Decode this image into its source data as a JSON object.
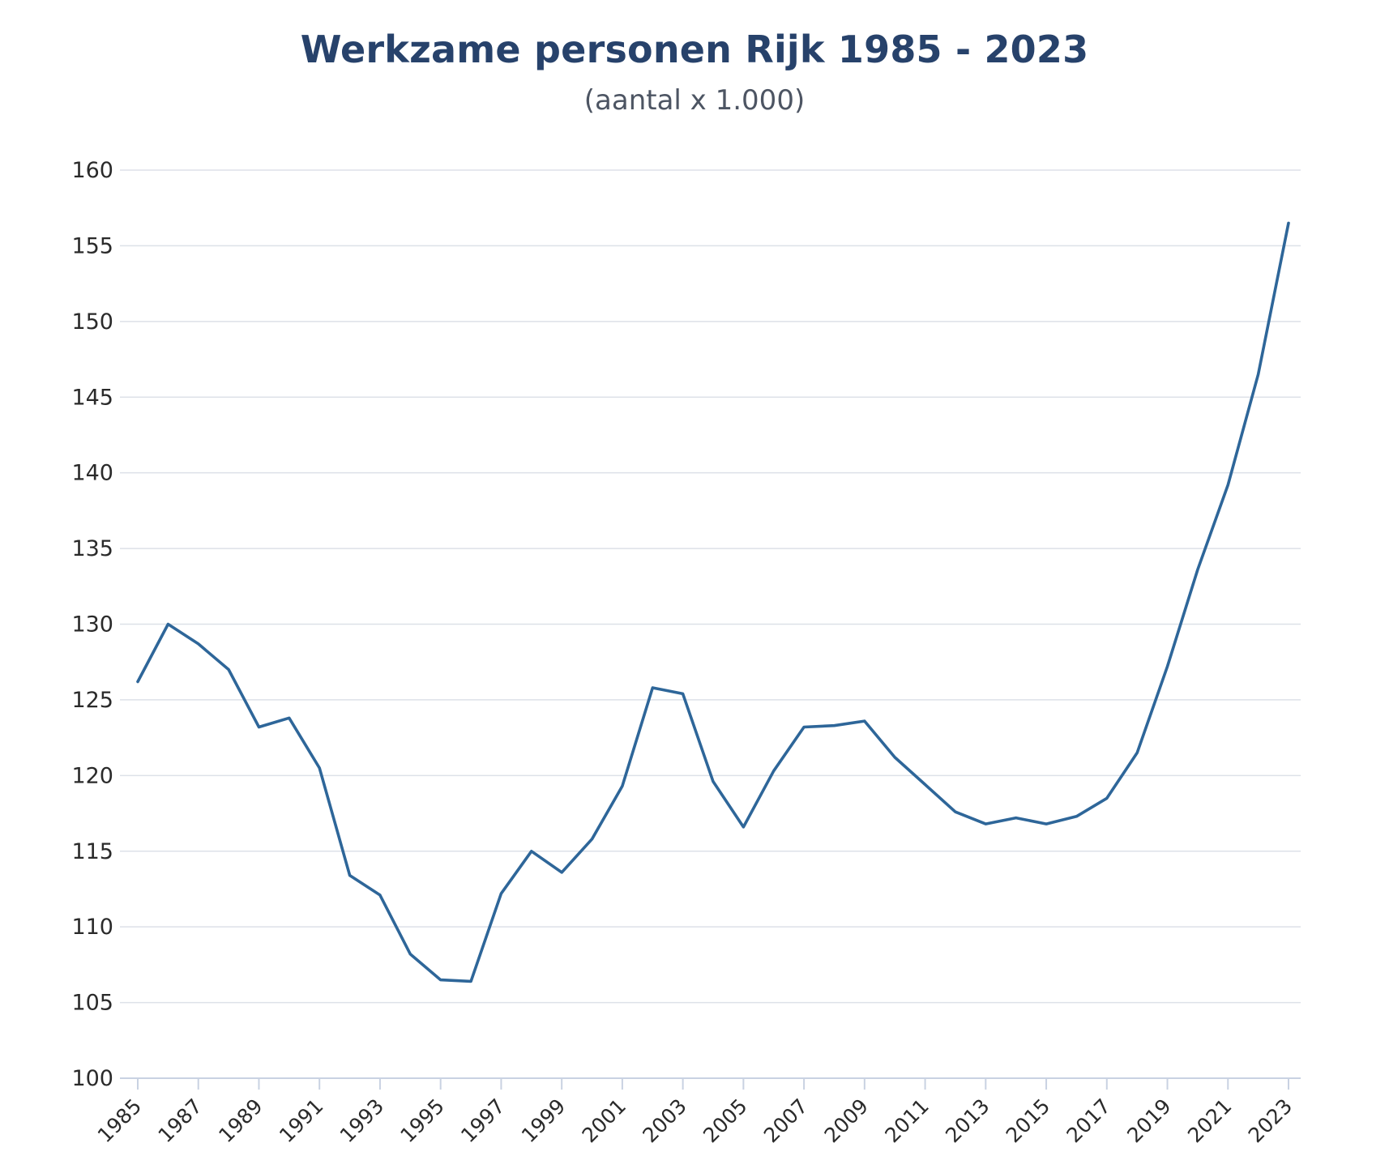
{
  "chart_data": {
    "type": "line",
    "title": "Werkzame personen Rijk 1985 - 2023",
    "subtitle": "(aantal x 1.000)",
    "xlabel": "",
    "ylabel": "",
    "ylim": [
      100,
      160
    ],
    "y_ticks": [
      100,
      105,
      110,
      115,
      120,
      125,
      130,
      135,
      140,
      145,
      150,
      155,
      160
    ],
    "x": [
      1985,
      1986,
      1987,
      1988,
      1989,
      1990,
      1991,
      1992,
      1993,
      1994,
      1995,
      1996,
      1997,
      1998,
      1999,
      2000,
      2001,
      2002,
      2003,
      2004,
      2005,
      2006,
      2007,
      2008,
      2009,
      2010,
      2011,
      2012,
      2013,
      2014,
      2015,
      2016,
      2017,
      2018,
      2019,
      2020,
      2021,
      2022,
      2023
    ],
    "x_tick_labels": [
      "1985",
      "1987",
      "1989",
      "1991",
      "1993",
      "1995",
      "1997",
      "1999",
      "2001",
      "2003",
      "2005",
      "2007",
      "2009",
      "2011",
      "2013",
      "2015",
      "2017",
      "2019",
      "2021",
      "2023"
    ],
    "series": [
      {
        "values": [
          126.2,
          130.0,
          128.7,
          127.0,
          123.2,
          123.8,
          120.5,
          113.4,
          112.1,
          108.2,
          106.5,
          106.4,
          112.2,
          115.0,
          113.6,
          115.8,
          119.3,
          125.8,
          125.4,
          119.6,
          116.6,
          120.3,
          123.2,
          123.3,
          123.6,
          121.2,
          119.4,
          117.6,
          116.8,
          117.2,
          116.8,
          117.3,
          118.5,
          121.5,
          127.2,
          133.6,
          139.2,
          146.5,
          156.5
        ]
      }
    ],
    "grid": true,
    "legend": "none",
    "series_color": "#2e6699",
    "title_color": "#27426b"
  }
}
